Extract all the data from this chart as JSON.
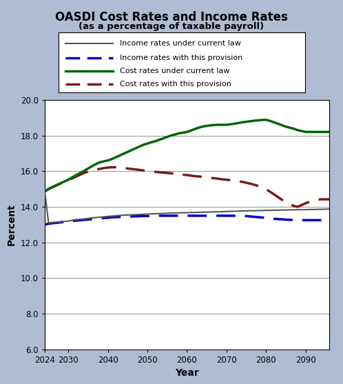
{
  "title": "OASDI Cost Rates and Income Rates",
  "subtitle": "(as a percentage of taxable payroll)",
  "xlabel": "Year",
  "ylabel": "Percent",
  "bg_color": "#b0bcd4",
  "plot_bg_color": "#ffffff",
  "ylim": [
    6.0,
    20.0
  ],
  "yticks": [
    6.0,
    8.0,
    10.0,
    12.0,
    14.0,
    16.0,
    18.0,
    20.0
  ],
  "xlim": [
    2024,
    2096
  ],
  "xticks": [
    2024,
    2030,
    2040,
    2050,
    2060,
    2070,
    2080,
    2090
  ],
  "years": [
    2024,
    2025,
    2026,
    2027,
    2028,
    2029,
    2030,
    2031,
    2032,
    2033,
    2034,
    2035,
    2036,
    2037,
    2038,
    2039,
    2040,
    2041,
    2042,
    2043,
    2044,
    2045,
    2046,
    2047,
    2048,
    2049,
    2050,
    2051,
    2052,
    2053,
    2054,
    2055,
    2056,
    2057,
    2058,
    2059,
    2060,
    2061,
    2062,
    2063,
    2064,
    2065,
    2066,
    2067,
    2068,
    2069,
    2070,
    2071,
    2072,
    2073,
    2074,
    2075,
    2076,
    2077,
    2078,
    2079,
    2080,
    2081,
    2082,
    2083,
    2084,
    2085,
    2086,
    2087,
    2088,
    2089,
    2090,
    2091,
    2092,
    2093,
    2094,
    2095,
    2096
  ],
  "income_current_law": [
    14.95,
    13.1,
    13.12,
    13.14,
    13.16,
    13.18,
    13.2,
    13.25,
    13.28,
    13.3,
    13.32,
    13.35,
    13.38,
    13.4,
    13.42,
    13.44,
    13.46,
    13.48,
    13.5,
    13.52,
    13.53,
    13.54,
    13.55,
    13.56,
    13.57,
    13.58,
    13.59,
    13.6,
    13.61,
    13.62,
    13.63,
    13.64,
    13.65,
    13.65,
    13.66,
    13.67,
    13.67,
    13.68,
    13.68,
    13.69,
    13.7,
    13.7,
    13.71,
    13.72,
    13.72,
    13.73,
    13.74,
    13.75,
    13.75,
    13.76,
    13.77,
    13.77,
    13.78,
    13.78,
    13.79,
    13.79,
    13.8,
    13.8,
    13.81,
    13.81,
    13.82,
    13.82,
    13.83,
    13.83,
    13.84,
    13.84,
    13.84,
    13.85,
    13.85,
    13.86,
    13.86,
    13.87,
    13.87
  ],
  "income_provision": [
    13.0,
    13.05,
    13.08,
    13.1,
    13.13,
    13.15,
    13.18,
    13.2,
    13.23,
    13.25,
    13.27,
    13.29,
    13.31,
    13.33,
    13.35,
    13.37,
    13.39,
    13.41,
    13.42,
    13.43,
    13.44,
    13.45,
    13.46,
    13.47,
    13.47,
    13.48,
    13.48,
    13.49,
    13.49,
    13.5,
    13.5,
    13.5,
    13.5,
    13.5,
    13.5,
    13.5,
    13.5,
    13.5,
    13.5,
    13.5,
    13.5,
    13.5,
    13.5,
    13.5,
    13.5,
    13.5,
    13.5,
    13.5,
    13.5,
    13.5,
    13.5,
    13.48,
    13.46,
    13.44,
    13.42,
    13.4,
    13.38,
    13.35,
    13.33,
    13.31,
    13.3,
    13.28,
    13.27,
    13.26,
    13.25,
    13.25,
    13.25,
    13.25,
    13.25,
    13.25,
    13.25,
    13.25,
    13.25
  ],
  "cost_current_law": [
    14.85,
    15.0,
    15.12,
    15.22,
    15.32,
    15.42,
    15.52,
    15.65,
    15.78,
    15.9,
    16.02,
    16.15,
    16.28,
    16.4,
    16.5,
    16.55,
    16.6,
    16.68,
    16.78,
    16.88,
    16.98,
    17.08,
    17.18,
    17.28,
    17.38,
    17.48,
    17.55,
    17.62,
    17.68,
    17.76,
    17.84,
    17.92,
    18.0,
    18.06,
    18.12,
    18.16,
    18.2,
    18.28,
    18.36,
    18.44,
    18.5,
    18.54,
    18.57,
    18.59,
    18.6,
    18.6,
    18.6,
    18.63,
    18.66,
    18.7,
    18.74,
    18.77,
    18.8,
    18.83,
    18.85,
    18.87,
    18.88,
    18.82,
    18.74,
    18.66,
    18.58,
    18.5,
    18.44,
    18.38,
    18.3,
    18.25,
    18.2,
    18.2,
    18.2,
    18.2,
    18.2,
    18.2,
    18.2
  ],
  "cost_provision": [
    14.85,
    15.0,
    15.1,
    15.2,
    15.3,
    15.4,
    15.5,
    15.6,
    15.7,
    15.8,
    15.9,
    15.97,
    16.03,
    16.08,
    16.13,
    16.17,
    16.2,
    16.22,
    16.22,
    16.2,
    16.18,
    16.15,
    16.12,
    16.1,
    16.07,
    16.04,
    16.01,
    15.98,
    15.96,
    15.94,
    15.92,
    15.9,
    15.88,
    15.85,
    15.82,
    15.8,
    15.78,
    15.75,
    15.72,
    15.7,
    15.68,
    15.65,
    15.62,
    15.6,
    15.57,
    15.54,
    15.52,
    15.49,
    15.46,
    15.43,
    15.4,
    15.35,
    15.3,
    15.24,
    15.17,
    15.08,
    14.98,
    14.85,
    14.7,
    14.55,
    14.4,
    14.27,
    14.15,
    14.05,
    14.0,
    14.1,
    14.2,
    14.28,
    14.35,
    14.4,
    14.42,
    14.42,
    14.42
  ],
  "income_current_law_color": "#555555",
  "income_provision_color": "#0000cc",
  "cost_current_law_color": "#006600",
  "cost_provision_color": "#7a1a1a",
  "legend_labels": [
    "Income rates under current law",
    "Income rates with this provision",
    "Cost rates under current law",
    "Cost rates with this provision"
  ]
}
